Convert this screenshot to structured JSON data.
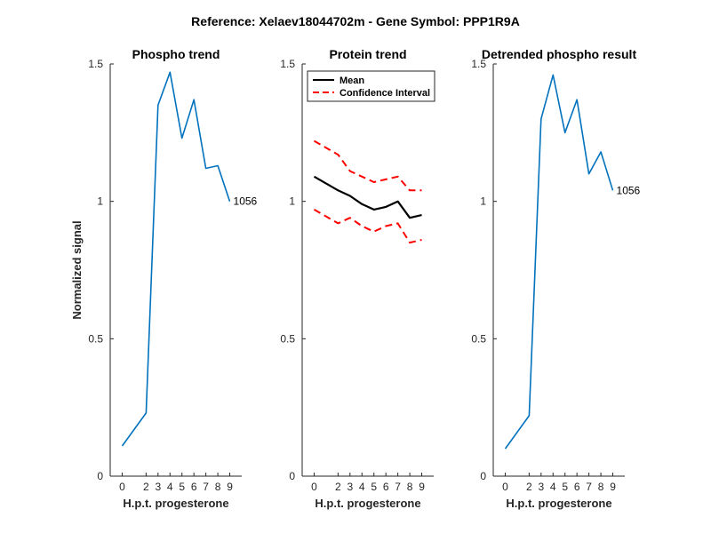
{
  "figure": {
    "suptitle": "Reference:  Xelaev18044702m - Gene Symbol:  PPP1R9A",
    "ylabel": "Normalized signal",
    "xlabel": "H.p.t. progesterone"
  },
  "colors": {
    "phospho": "#0072BD",
    "mean": "#000000",
    "ci": "#FF0000",
    "axis": "#262626"
  },
  "chart_data": [
    {
      "type": "line",
      "title": "Phospho trend",
      "xlabel": "H.p.t. progesterone",
      "ylabel": "Normalized signal",
      "xlim": [
        -1,
        10
      ],
      "ylim": [
        0,
        1.5
      ],
      "xticks": [
        0,
        2,
        3,
        4,
        5,
        6,
        7,
        8,
        9
      ],
      "yticks": [
        0,
        0.5,
        1,
        1.5
      ],
      "ytick_labels": [
        "0",
        "0.5",
        "1",
        "1.5"
      ],
      "grid": false,
      "series": [
        {
          "color": "#0072BD",
          "x": [
            0,
            2,
            3,
            4,
            5,
            6,
            7,
            8,
            9
          ],
          "y": [
            0.11,
            0.23,
            1.35,
            1.47,
            1.23,
            1.37,
            1.12,
            1.13,
            1.0
          ]
        }
      ],
      "annotations": [
        {
          "text": "1056",
          "x": 9,
          "y": 1.0
        }
      ]
    },
    {
      "type": "line",
      "title": "Protein trend",
      "xlabel": "H.p.t. progesterone",
      "xlim": [
        -1,
        10
      ],
      "ylim": [
        0,
        1.5
      ],
      "xticks": [
        0,
        2,
        3,
        4,
        5,
        6,
        7,
        8,
        9
      ],
      "yticks": [
        0,
        0.5,
        1,
        1.5
      ],
      "ytick_labels": [
        "0",
        "0.5",
        "1",
        "1.5"
      ],
      "grid": false,
      "legend": {
        "placement": "top-left",
        "entries": [
          "Mean",
          "Confidence Interval"
        ]
      },
      "series": [
        {
          "name": "Mean",
          "color": "#000000",
          "style": "solid",
          "x": [
            0,
            2,
            3,
            4,
            5,
            6,
            7,
            8,
            9
          ],
          "y": [
            1.09,
            1.04,
            1.02,
            0.99,
            0.97,
            0.98,
            1.0,
            0.94,
            0.95
          ]
        },
        {
          "name": "Confidence Interval",
          "color": "#FF0000",
          "style": "dashed",
          "x": [
            0,
            2,
            3,
            4,
            5,
            6,
            7,
            8,
            9
          ],
          "y": [
            1.22,
            1.17,
            1.11,
            1.09,
            1.07,
            1.08,
            1.09,
            1.04,
            1.04
          ]
        },
        {
          "color": "#FF0000",
          "style": "dashed",
          "x": [
            0,
            2,
            3,
            4,
            5,
            6,
            7,
            8,
            9
          ],
          "y": [
            0.97,
            0.92,
            0.94,
            0.91,
            0.89,
            0.91,
            0.92,
            0.85,
            0.86
          ]
        }
      ]
    },
    {
      "type": "line",
      "title": "Detrended phospho result",
      "xlabel": "H.p.t. progesterone",
      "xlim": [
        -1,
        10
      ],
      "ylim": [
        0,
        1.5
      ],
      "xticks": [
        0,
        2,
        3,
        4,
        5,
        6,
        7,
        8,
        9
      ],
      "yticks": [
        0,
        0.5,
        1,
        1.5
      ],
      "ytick_labels": [
        "0",
        "0.5",
        "1",
        "1.5"
      ],
      "grid": false,
      "series": [
        {
          "color": "#0072BD",
          "x": [
            0,
            2,
            3,
            4,
            5,
            6,
            7,
            8,
            9
          ],
          "y": [
            0.1,
            0.22,
            1.3,
            1.46,
            1.25,
            1.37,
            1.1,
            1.18,
            1.04
          ]
        }
      ],
      "annotations": [
        {
          "text": "1056",
          "x": 9,
          "y": 1.04
        }
      ]
    }
  ]
}
